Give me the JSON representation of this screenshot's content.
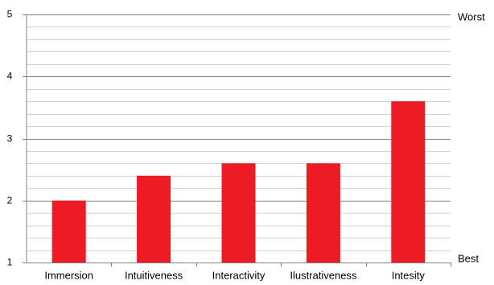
{
  "chart_data": {
    "type": "bar",
    "categories": [
      "Immersion",
      "Intuitiveness",
      "Interactivity",
      "Ilustrativeness",
      "Intesity"
    ],
    "values": [
      2.0,
      2.4,
      2.6,
      2.6,
      3.6
    ],
    "ylim": [
      1,
      5
    ],
    "yticks": [
      1,
      2,
      3,
      4,
      5
    ],
    "minor_step": 0.2,
    "grid": true,
    "right_labels": {
      "top": "Worst",
      "bottom": "Best"
    },
    "bar_color": "#ed1c24",
    "major_grid_color": "#808080",
    "minor_grid_color": "#d0d0d0"
  }
}
